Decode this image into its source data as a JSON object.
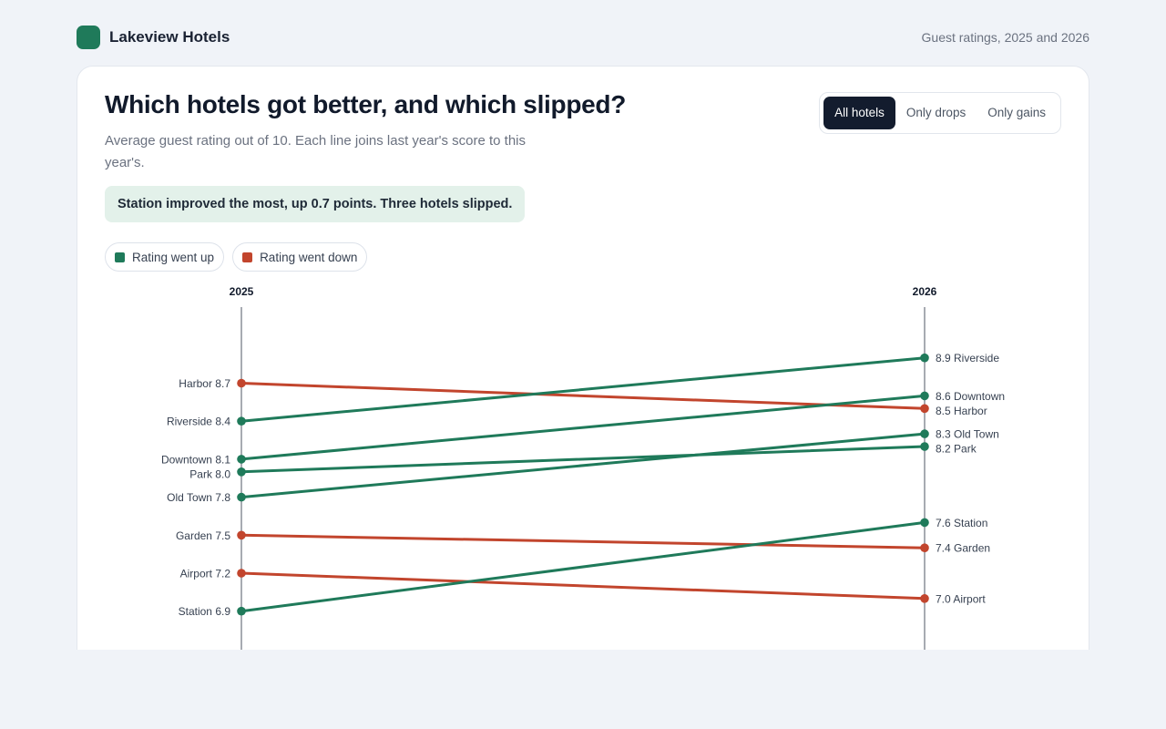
{
  "brand": {
    "name": "Lakeview Hotels",
    "tagline": "Guest ratings, 2025 and 2026"
  },
  "header": {
    "title": "Which hotels got better, and which slipped?",
    "subtitle": "Average guest rating out of 10. Each line joins last year's score to this year's.",
    "insight": "Station improved the most, up 0.7 points. Three hotels slipped."
  },
  "filters": {
    "options": [
      "All hotels",
      "Only drops",
      "Only gains"
    ],
    "selected": "All hotels"
  },
  "legend": {
    "up": "Rating went up",
    "down": "Rating went down"
  },
  "colors": {
    "up": "#1f7a5a",
    "down": "#c2452d",
    "axis": "#8a8f98",
    "accent": "#1f7a5a"
  },
  "chart_data": {
    "type": "slope",
    "categories": [
      "2025",
      "2026"
    ],
    "series": [
      {
        "name": "Harbor",
        "values": [
          8.7,
          8.5
        ]
      },
      {
        "name": "Riverside",
        "values": [
          8.4,
          8.9
        ]
      },
      {
        "name": "Downtown",
        "values": [
          8.1,
          8.6
        ]
      },
      {
        "name": "Park",
        "values": [
          8.0,
          8.2
        ]
      },
      {
        "name": "Old Town",
        "values": [
          7.8,
          8.3
        ]
      },
      {
        "name": "Garden",
        "values": [
          7.5,
          7.4
        ]
      },
      {
        "name": "Airport",
        "values": [
          7.2,
          7.0
        ]
      },
      {
        "name": "Station",
        "values": [
          6.9,
          7.6
        ]
      }
    ]
  }
}
